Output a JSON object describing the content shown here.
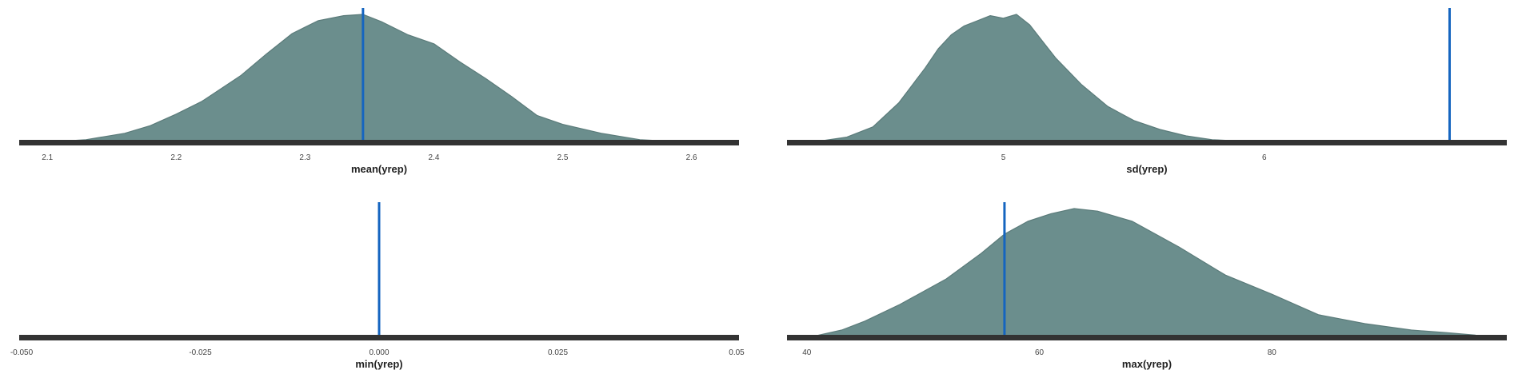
{
  "colors": {
    "density_fill": "#6b8e8d",
    "density_stroke": "#5b7b7a",
    "observed_line": "#1565c0",
    "axis_line": "#333333",
    "baseline": "#ffffff"
  },
  "chart_data": [
    {
      "type": "area",
      "xlabel": "mean(yrep)",
      "xlim": [
        2.08,
        2.635
      ],
      "ticks": [
        2.1,
        2.2,
        2.3,
        2.4,
        2.5,
        2.6
      ],
      "tick_labels": [
        "2.1",
        "2.2",
        "2.3",
        "2.4",
        "2.5",
        "2.6"
      ],
      "observed_value": 2.345,
      "density": {
        "x": [
          2.105,
          2.13,
          2.16,
          2.18,
          2.2,
          2.22,
          2.25,
          2.27,
          2.29,
          2.31,
          2.33,
          2.345,
          2.36,
          2.38,
          2.4,
          2.42,
          2.44,
          2.46,
          2.48,
          2.5,
          2.53,
          2.56,
          2.59,
          2.61
        ],
        "y": [
          0.005,
          0.02,
          0.07,
          0.13,
          0.22,
          0.32,
          0.52,
          0.69,
          0.85,
          0.95,
          0.99,
          1.0,
          0.94,
          0.84,
          0.77,
          0.63,
          0.5,
          0.36,
          0.21,
          0.14,
          0.07,
          0.02,
          0.005,
          0.002
        ]
      }
    },
    {
      "type": "area",
      "xlabel": "sd(yrep)",
      "xlim": [
        4.18,
        6.92
      ],
      "ticks": [
        5,
        6
      ],
      "tick_labels": [
        "5",
        "6"
      ],
      "observed_value": 6.71,
      "density": {
        "x": [
          4.3,
          4.4,
          4.5,
          4.6,
          4.7,
          4.75,
          4.8,
          4.85,
          4.9,
          4.95,
          5.0,
          5.05,
          5.1,
          5.15,
          5.2,
          5.3,
          5.4,
          5.5,
          5.6,
          5.7,
          5.8,
          5.9,
          6.0,
          6.2,
          6.5,
          6.7
        ],
        "y": [
          0.01,
          0.04,
          0.12,
          0.31,
          0.58,
          0.73,
          0.84,
          0.91,
          0.95,
          0.99,
          0.97,
          1.0,
          0.92,
          0.79,
          0.66,
          0.45,
          0.28,
          0.17,
          0.1,
          0.05,
          0.02,
          0.01,
          0.003,
          0.001,
          0.0005,
          0.0002
        ]
      }
    },
    {
      "type": "area",
      "xlabel": "min(yrep)",
      "xlim": [
        -0.05,
        0.05
      ],
      "ticks": [
        -0.05,
        -0.025,
        0,
        0.025,
        0.05
      ],
      "tick_labels": [
        "-0.050",
        "-0.025",
        "0.000",
        "0.025",
        "0.05"
      ],
      "observed_value": 0,
      "density": {
        "x": [],
        "y": []
      }
    },
    {
      "type": "area",
      "xlabel": "max(yrep)",
      "xlim": [
        38.5,
        100
      ],
      "ticks": [
        40,
        60,
        80
      ],
      "tick_labels": [
        "40",
        "60",
        "80"
      ],
      "observed_value": 57,
      "density": {
        "x": [
          41,
          43,
          45,
          48,
          52,
          55,
          57,
          59,
          61,
          63,
          65,
          68,
          72,
          76,
          80,
          84,
          88,
          92,
          95,
          97.5
        ],
        "y": [
          0.01,
          0.05,
          0.12,
          0.25,
          0.45,
          0.65,
          0.8,
          0.9,
          0.96,
          1.0,
          0.98,
          0.9,
          0.7,
          0.48,
          0.33,
          0.17,
          0.1,
          0.05,
          0.03,
          0.01
        ]
      }
    }
  ]
}
